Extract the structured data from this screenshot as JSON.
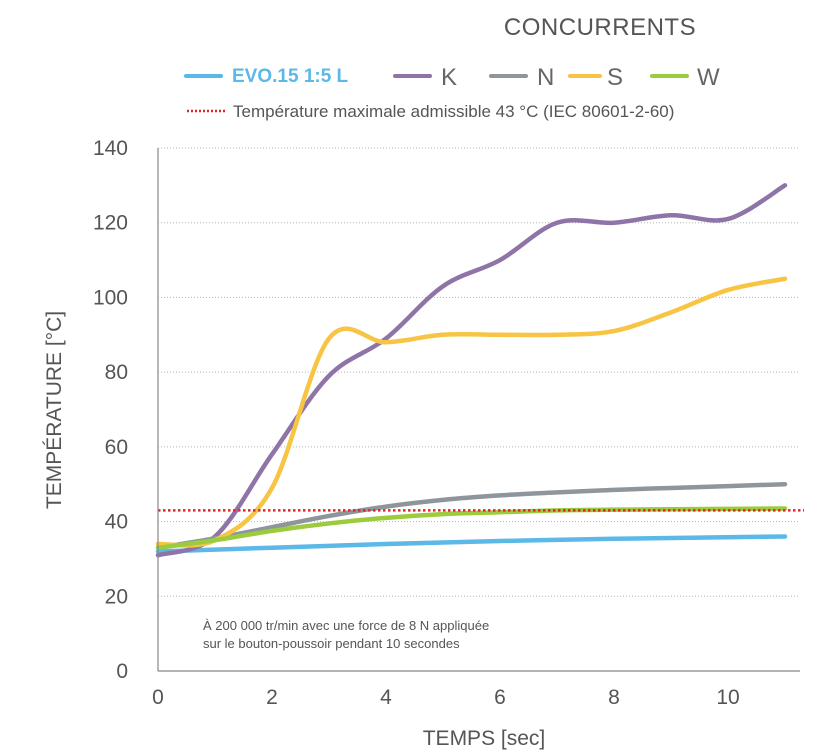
{
  "chart_data": {
    "type": "line",
    "title": "CONCURRENTS",
    "xlabel": "TEMPS [sec]",
    "ylabel": "TEMPÉRATURE [°C]",
    "xlim": [
      0,
      11
    ],
    "ylim": [
      0,
      140
    ],
    "xticks": [
      0,
      2,
      4,
      6,
      8,
      10
    ],
    "yticks": [
      0,
      20,
      40,
      60,
      80,
      100,
      120,
      140
    ],
    "grid": "horizontal",
    "legend_position": "top",
    "series": [
      {
        "name": "EVO.15 1:5 L",
        "color": "#5cb8e6",
        "highlight": true,
        "x": [
          0,
          2,
          4,
          6,
          8,
          11
        ],
        "y": [
          32,
          33,
          34,
          34.8,
          35.4,
          36
        ]
      },
      {
        "name": "K",
        "color": "#8f74a8",
        "highlight": false,
        "x": [
          0,
          1,
          2,
          3,
          4,
          5,
          6,
          7,
          8,
          9,
          10,
          11
        ],
        "y": [
          31,
          36,
          58,
          79,
          89,
          103,
          110,
          120,
          120,
          122,
          121,
          130
        ]
      },
      {
        "name": "N",
        "color": "#8e969c",
        "highlight": false,
        "x": [
          0,
          1,
          2,
          3,
          4,
          5,
          6,
          7,
          8,
          9,
          10,
          11
        ],
        "y": [
          33,
          35.5,
          38.5,
          41.5,
          44,
          45.8,
          47,
          47.8,
          48.5,
          49,
          49.5,
          50
        ]
      },
      {
        "name": "S",
        "color": "#f7c443",
        "highlight": false,
        "x": [
          0,
          1,
          2,
          3,
          4,
          5,
          6,
          7,
          8,
          9,
          10,
          11
        ],
        "y": [
          34,
          35,
          49,
          89,
          88,
          90,
          90,
          90,
          91,
          96,
          102,
          105
        ]
      },
      {
        "name": "W",
        "color": "#9ccc3d",
        "highlight": false,
        "x": [
          0,
          1,
          2,
          3,
          4,
          5,
          6,
          7,
          8,
          9,
          10,
          11
        ],
        "y": [
          33,
          35,
          37.5,
          39.5,
          41,
          42,
          42.5,
          43,
          43.2,
          43.3,
          43.4,
          43.5
        ]
      }
    ],
    "reference_line": {
      "label": "Température maximale admissible 43 °C (IEC 80601-2-60)",
      "y": 43,
      "color": "#e0242b"
    },
    "annotation": {
      "line1": "À 200 000 tr/min avec une force de 8 N appliquée",
      "line2": "sur le bouton-poussoir pendant 10 secondes"
    }
  }
}
